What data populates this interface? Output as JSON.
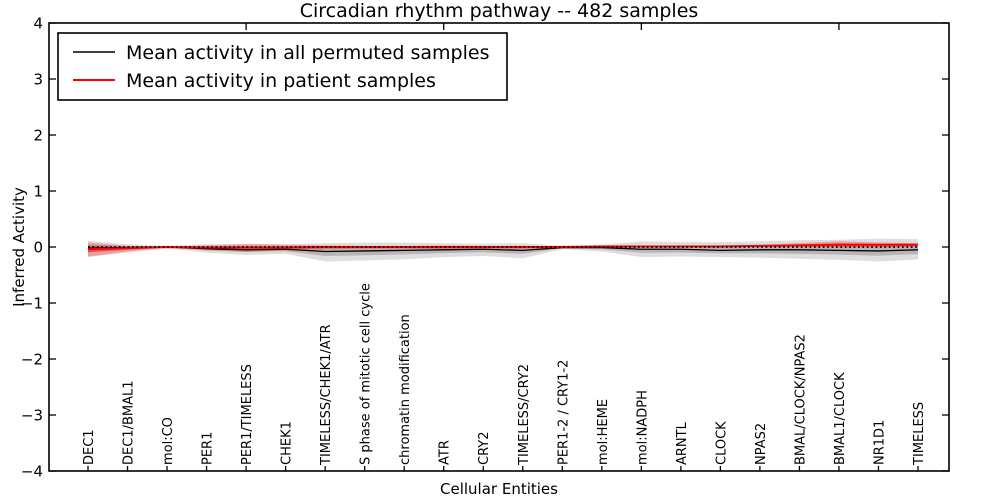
{
  "chart_data": {
    "type": "line",
    "title": "Circadian rhythm pathway -- 482 samples",
    "xlabel": "Cellular Entities",
    "ylabel": "Inferred Activity",
    "ylim": [
      -4,
      4
    ],
    "grid": false,
    "background": "#ffffff",
    "yticks": {
      "values": [
        4,
        3,
        2,
        1,
        0,
        -1,
        -2,
        -3,
        -4
      ],
      "labels": [
        "4",
        "3",
        "2",
        "1",
        "0",
        "−1",
        "−2",
        "−3",
        "−4"
      ]
    },
    "top_tick_indices": [
      4,
      9,
      14,
      19
    ],
    "categories": [
      "DEC1",
      "DEC1/BMAL1",
      "mol:CO",
      "PER1",
      "PER1/TIMELESS",
      "CHEK1",
      "TIMELESS/CHEK1/ATR",
      "S phase of mitotic cell cycle",
      "chromatin modification",
      "ATR",
      "CRY2",
      "TIMELESS/CRY2",
      "PER1-2 / CRY1-2",
      "mol:HEME",
      "mol:NADPH",
      "ARNTL",
      "CLOCK",
      "NPAS2",
      "BMAL/CLOCK/NPAS2",
      "BMAL1/CLOCK",
      "NR1D1",
      "TIMELESS"
    ],
    "series": [
      {
        "name": "Mean activity in all permuted samples",
        "color": "#000000",
        "line_width": 1.3,
        "values": [
          -0.02,
          -0.01,
          0.0,
          -0.03,
          -0.05,
          -0.04,
          -0.08,
          -0.07,
          -0.06,
          -0.05,
          -0.04,
          -0.06,
          -0.01,
          -0.01,
          -0.04,
          -0.04,
          -0.06,
          -0.05,
          -0.05,
          -0.06,
          -0.07,
          -0.05
        ],
        "band_upper": [
          0.11,
          0.05,
          0.02,
          0.05,
          0.06,
          0.05,
          0.07,
          0.08,
          0.08,
          0.07,
          0.06,
          0.07,
          0.02,
          0.04,
          0.1,
          0.09,
          0.09,
          0.1,
          0.12,
          0.13,
          0.15,
          0.14
        ],
        "band_lower": [
          -0.18,
          -0.1,
          -0.03,
          -0.1,
          -0.14,
          -0.12,
          -0.26,
          -0.24,
          -0.22,
          -0.18,
          -0.16,
          -0.2,
          -0.04,
          -0.08,
          -0.18,
          -0.17,
          -0.18,
          -0.19,
          -0.21,
          -0.23,
          -0.26,
          -0.22
        ],
        "band_color": "#000000",
        "band_opacity": 0.13,
        "band_inner_opacity": 0.18
      },
      {
        "name": "Mean activity in patient samples",
        "color": "#ff0000",
        "line_width": 1.9,
        "values": [
          -0.04,
          -0.02,
          0.0,
          -0.01,
          -0.01,
          -0.01,
          0.0,
          0.0,
          0.0,
          0.0,
          0.0,
          0.0,
          0.0,
          0.01,
          0.01,
          0.01,
          0.01,
          0.02,
          0.03,
          0.04,
          0.04,
          0.04
        ],
        "band_upper": [
          0.08,
          0.02,
          0.01,
          0.03,
          0.05,
          0.04,
          0.03,
          0.02,
          0.02,
          0.03,
          0.02,
          0.02,
          0.01,
          0.02,
          0.02,
          0.03,
          0.03,
          0.04,
          0.07,
          0.1,
          0.08,
          0.07
        ],
        "band_lower": [
          -0.17,
          -0.08,
          -0.01,
          -0.05,
          -0.08,
          -0.06,
          -0.04,
          -0.03,
          -0.03,
          -0.04,
          -0.03,
          -0.03,
          -0.01,
          -0.01,
          -0.01,
          -0.01,
          -0.01,
          0.0,
          0.0,
          -0.01,
          -0.01,
          0.0
        ],
        "band_color": "#ff0000",
        "band_opacity": 0.28,
        "band_inner_opacity": 0.33
      }
    ],
    "zero_line": {
      "y": 0,
      "style": "dotted",
      "color": "#000000"
    },
    "legend": {
      "position": "upper left",
      "entries": [
        "Mean activity in all permuted samples",
        "Mean activity in patient samples"
      ]
    }
  }
}
